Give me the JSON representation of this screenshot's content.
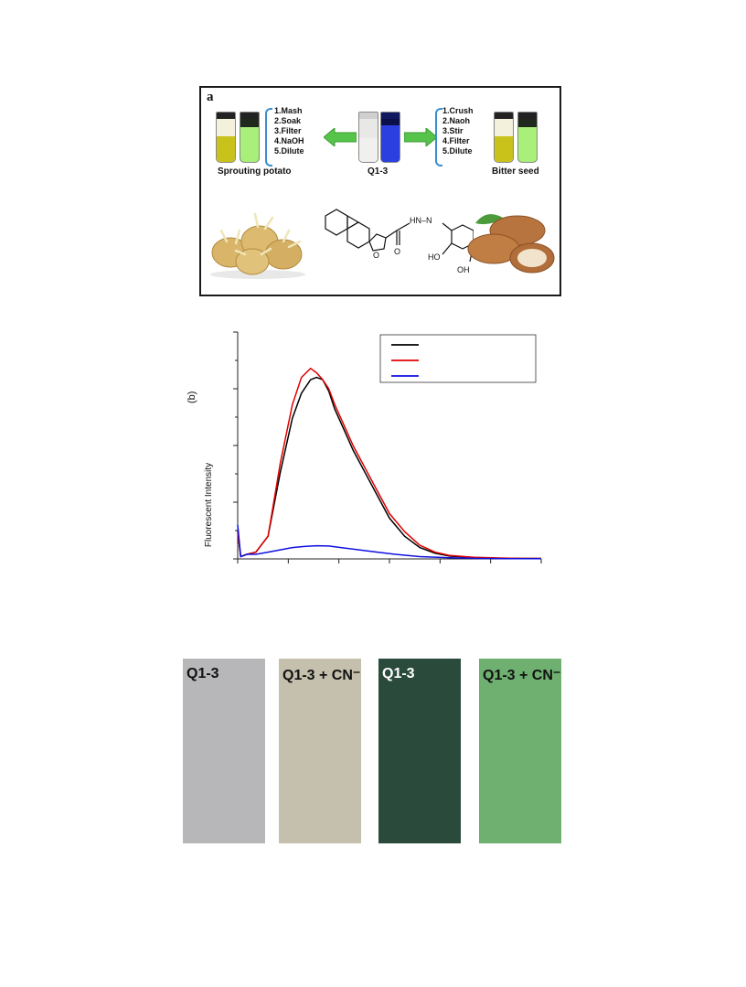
{
  "panel_a": {
    "letter": "a",
    "left_steps": "1.Mash\n2.Soak\n3.Filter\n4.NaOH\n5.Dilute",
    "right_steps": "1.Crush\n2.Naoh\n3.Stir\n4.Filter\n5.Dilute",
    "left_label": "Sprouting potato",
    "center_label": "Q1-3",
    "right_label": "Bitter seed",
    "structure_labels": {
      "nh_n": "HN–N",
      "o_ring": "O",
      "o_carbonyl": "O",
      "ho": "HO",
      "oh": "OH"
    },
    "colors": {
      "arrow": "#56c44a",
      "brace": "#3a8fd0",
      "yellow_solution": "#c9c21a",
      "green_fluor": "#a8f07a",
      "blue_fluor": "#2b3fe0"
    }
  },
  "chart_data": {
    "type": "line",
    "panel_label": "(b)",
    "ylabel": "Fluorescent Intensity",
    "xlabel": "",
    "x_range": [
      0,
      1
    ],
    "y_range": [
      0,
      1
    ],
    "legend": {
      "position": "top-right",
      "entries": [
        "",
        "",
        ""
      ]
    },
    "series": [
      {
        "color": "#000000",
        "x": [
          0.0,
          0.01,
          0.03,
          0.06,
          0.1,
          0.14,
          0.18,
          0.21,
          0.24,
          0.26,
          0.28,
          0.3,
          0.32,
          0.35,
          0.38,
          0.42,
          0.46,
          0.5,
          0.55,
          0.6,
          0.65,
          0.7,
          0.78,
          0.86,
          0.94,
          1.0
        ],
        "y": [
          0.12,
          0.01,
          0.02,
          0.03,
          0.1,
          0.38,
          0.62,
          0.73,
          0.79,
          0.8,
          0.79,
          0.74,
          0.66,
          0.57,
          0.48,
          0.38,
          0.28,
          0.18,
          0.1,
          0.05,
          0.025,
          0.012,
          0.006,
          0.003,
          0.002,
          0.002
        ]
      },
      {
        "color": "#e00000",
        "x": [
          0.0,
          0.01,
          0.03,
          0.06,
          0.1,
          0.14,
          0.18,
          0.21,
          0.24,
          0.26,
          0.28,
          0.3,
          0.32,
          0.35,
          0.38,
          0.42,
          0.46,
          0.5,
          0.55,
          0.6,
          0.65,
          0.7,
          0.78,
          0.86,
          0.94,
          1.0
        ],
        "y": [
          0.12,
          0.01,
          0.02,
          0.03,
          0.1,
          0.42,
          0.68,
          0.8,
          0.84,
          0.82,
          0.79,
          0.75,
          0.68,
          0.59,
          0.5,
          0.4,
          0.3,
          0.2,
          0.12,
          0.06,
          0.03,
          0.015,
          0.007,
          0.004,
          0.002,
          0.002
        ]
      },
      {
        "color": "#1010e0",
        "x": [
          0.0,
          0.01,
          0.03,
          0.06,
          0.1,
          0.14,
          0.18,
          0.22,
          0.26,
          0.3,
          0.34,
          0.4,
          0.46,
          0.52,
          0.6,
          0.7,
          0.8,
          0.9,
          1.0
        ],
        "y": [
          0.15,
          0.01,
          0.02,
          0.02,
          0.03,
          0.04,
          0.05,
          0.055,
          0.058,
          0.057,
          0.05,
          0.04,
          0.03,
          0.02,
          0.01,
          0.005,
          0.002,
          0.001,
          0.001
        ]
      }
    ],
    "grid": false
  },
  "strips": [
    {
      "label": "Q1-3",
      "color": "#b7b7ba",
      "text_color": "#111111"
    },
    {
      "label": "Q1-3 + CN⁻",
      "color": "#c4c0ad",
      "text_color": "#111111"
    },
    {
      "label": "Q1-3",
      "color": "#2a4a3c",
      "text_color": "#ffffff"
    },
    {
      "label": "Q1-3 + CN⁻",
      "color": "#6fb070",
      "text_color": "#111111"
    }
  ]
}
